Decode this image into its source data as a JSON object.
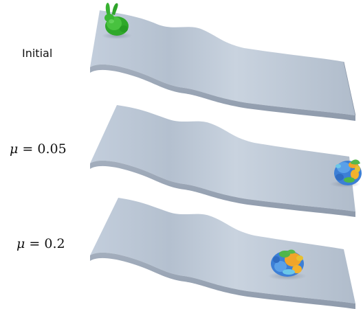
{
  "rows": [
    {
      "label": "Initial"
    },
    {
      "label_var": "μ",
      "label_eq": " = ",
      "label_val": "0.05"
    },
    {
      "label_var": "μ",
      "label_eq": " = ",
      "label_val": "0.2"
    }
  ],
  "colors": {
    "slab_top": "#b9c4d3",
    "slab_front": "#9aa6b6",
    "bunny_initial": "#34b82e",
    "bunny_blue": "#3c7fd6",
    "bunny_orange": "#f0a52a",
    "bunny_green": "#4fb64a"
  },
  "icons": [
    "green-bunny",
    "deformed-bunny"
  ]
}
